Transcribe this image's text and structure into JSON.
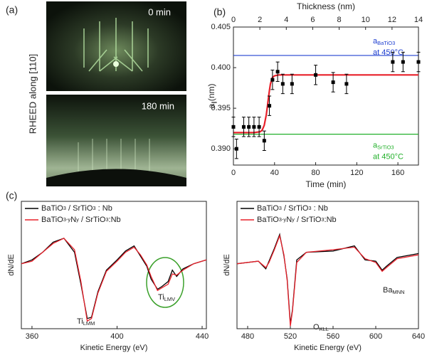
{
  "panel_labels": [
    "(a)",
    "(b)",
    "(c)"
  ],
  "rheed": {
    "axis_label": "RHEED along [110]",
    "images": [
      {
        "label": "0 min"
      },
      {
        "label": "180 min"
      }
    ]
  },
  "chart_data": [
    {
      "type": "scatter",
      "x_label": "Time (min)",
      "x2_label": "Thickness (nm)",
      "y_label": "a",
      "y_label_sub": "∥",
      "y_label_unit": "(nm)",
      "xlim": [
        0,
        180
      ],
      "xticks": [
        0,
        40,
        80,
        120,
        160
      ],
      "x2lim": [
        0,
        14
      ],
      "x2ticks": [
        0,
        2,
        4,
        6,
        8,
        10,
        12,
        14
      ],
      "ylim": [
        0.388,
        0.405
      ],
      "yticks": [
        {
          "value": 0.39,
          "label": "0.390"
        },
        0.395,
        {
          "value": 0.4,
          "label": "0.400"
        },
        0.405
      ],
      "points": {
        "color": "#000000",
        "x": [
          0,
          3,
          10,
          15,
          20,
          25,
          30,
          35,
          38,
          43,
          48,
          57,
          80,
          97,
          110,
          155,
          165,
          180
        ],
        "y": [
          0.3927,
          0.39,
          0.3927,
          0.3927,
          0.3927,
          0.3927,
          0.391,
          0.3953,
          0.3985,
          0.3995,
          0.398,
          0.398,
          0.3991,
          0.3982,
          0.398,
          0.4007,
          0.4007,
          0.4007
        ],
        "error": [
          0.0012,
          0.0012,
          0.0012,
          0.0012,
          0.0012,
          0.0012,
          0.0012,
          0.0012,
          0.0012,
          0.0012,
          0.0012,
          0.0012,
          0.0012,
          0.0012,
          0.0012,
          0.0012,
          0.0012,
          0.0012
        ]
      },
      "fit": {
        "color": "#e8202a",
        "x": [
          0,
          20,
          26,
          28,
          30,
          32,
          33,
          34,
          35,
          36,
          38,
          40,
          44,
          50,
          180
        ],
        "y": [
          0.392,
          0.392,
          0.3921,
          0.3923,
          0.3929,
          0.3942,
          0.3952,
          0.3962,
          0.3972,
          0.398,
          0.3988,
          0.399,
          0.3991,
          0.3991,
          0.3991
        ]
      },
      "reference_lines": [
        {
          "value": 0.4015,
          "color": "#2040d0",
          "label": "a",
          "label_sub": "BaTiO3",
          "label_line2": "at 450°C"
        },
        {
          "value": 0.3918,
          "color": "#22b02a",
          "label": "a",
          "label_sub": "SrTiO3",
          "label_line2": "at 450°C"
        }
      ]
    },
    {
      "type": "line",
      "x_label": "Kinetic Energy (eV)",
      "y_label": "dN/dE",
      "xlim": [
        355,
        442
      ],
      "xticks": [
        360,
        400,
        440
      ],
      "ylim": [
        0,
        100
      ],
      "legend": "upper left",
      "x": [
        355,
        360,
        365,
        370,
        375,
        380,
        383,
        386,
        388,
        391,
        395,
        400,
        404,
        408,
        411,
        414,
        416,
        419,
        421,
        424,
        426,
        428,
        431,
        436,
        442
      ],
      "series": [
        {
          "name": "BaTiO3 / SrTiO3 : Nb",
          "color": "#000000",
          "values": [
            51,
            54,
            60,
            68,
            71,
            60,
            35,
            8,
            9,
            29,
            46,
            54,
            61,
            65,
            57,
            49,
            39,
            31,
            33,
            37,
            46,
            41,
            47,
            51,
            54
          ]
        },
        {
          "name": "BaTiO3-yNy / SrTiO3:Nb",
          "color": "#e8202a",
          "values": [
            51,
            53,
            60,
            67,
            71,
            62,
            37,
            6,
            8,
            28,
            45,
            53,
            60,
            64,
            58,
            50,
            41,
            30,
            32,
            35,
            43,
            42,
            46,
            51,
            54
          ]
        }
      ],
      "annotations": [
        {
          "text": "Ti",
          "sub": "LMM"
        },
        {
          "text": "Ti",
          "sub": "LMV"
        }
      ]
    },
    {
      "type": "line",
      "x_label": "Kinetic Energy (eV)",
      "y_label": "dN/dE",
      "xlim": [
        470,
        640
      ],
      "xticks": [
        480,
        520,
        560,
        600,
        640
      ],
      "ylim": [
        0,
        100
      ],
      "legend": "upper left",
      "x": [
        470,
        490,
        497,
        500,
        505,
        510,
        514,
        517,
        520,
        522,
        526,
        535,
        560,
        580,
        590,
        600,
        606,
        610,
        620,
        640
      ],
      "series": [
        {
          "name": "BaTiO3 / SrTiO3 : Nb",
          "color": "#000000",
          "values": [
            51,
            53,
            47,
            53,
            63,
            74,
            57,
            39,
            4,
            15,
            54,
            60,
            61,
            65,
            54,
            53,
            46,
            49,
            56,
            59
          ]
        },
        {
          "name": "BaTiO3-yNy / SrTiO3:Nb",
          "color": "#e8202a",
          "values": [
            51,
            53,
            48,
            52,
            62,
            73,
            58,
            38,
            2,
            14,
            52,
            60,
            62,
            64,
            55,
            52,
            45,
            48,
            55,
            58
          ]
        }
      ],
      "annotations": [
        {
          "text": "O",
          "sub": "KLL"
        },
        {
          "text": "Ba",
          "sub": "MNN"
        }
      ]
    }
  ]
}
